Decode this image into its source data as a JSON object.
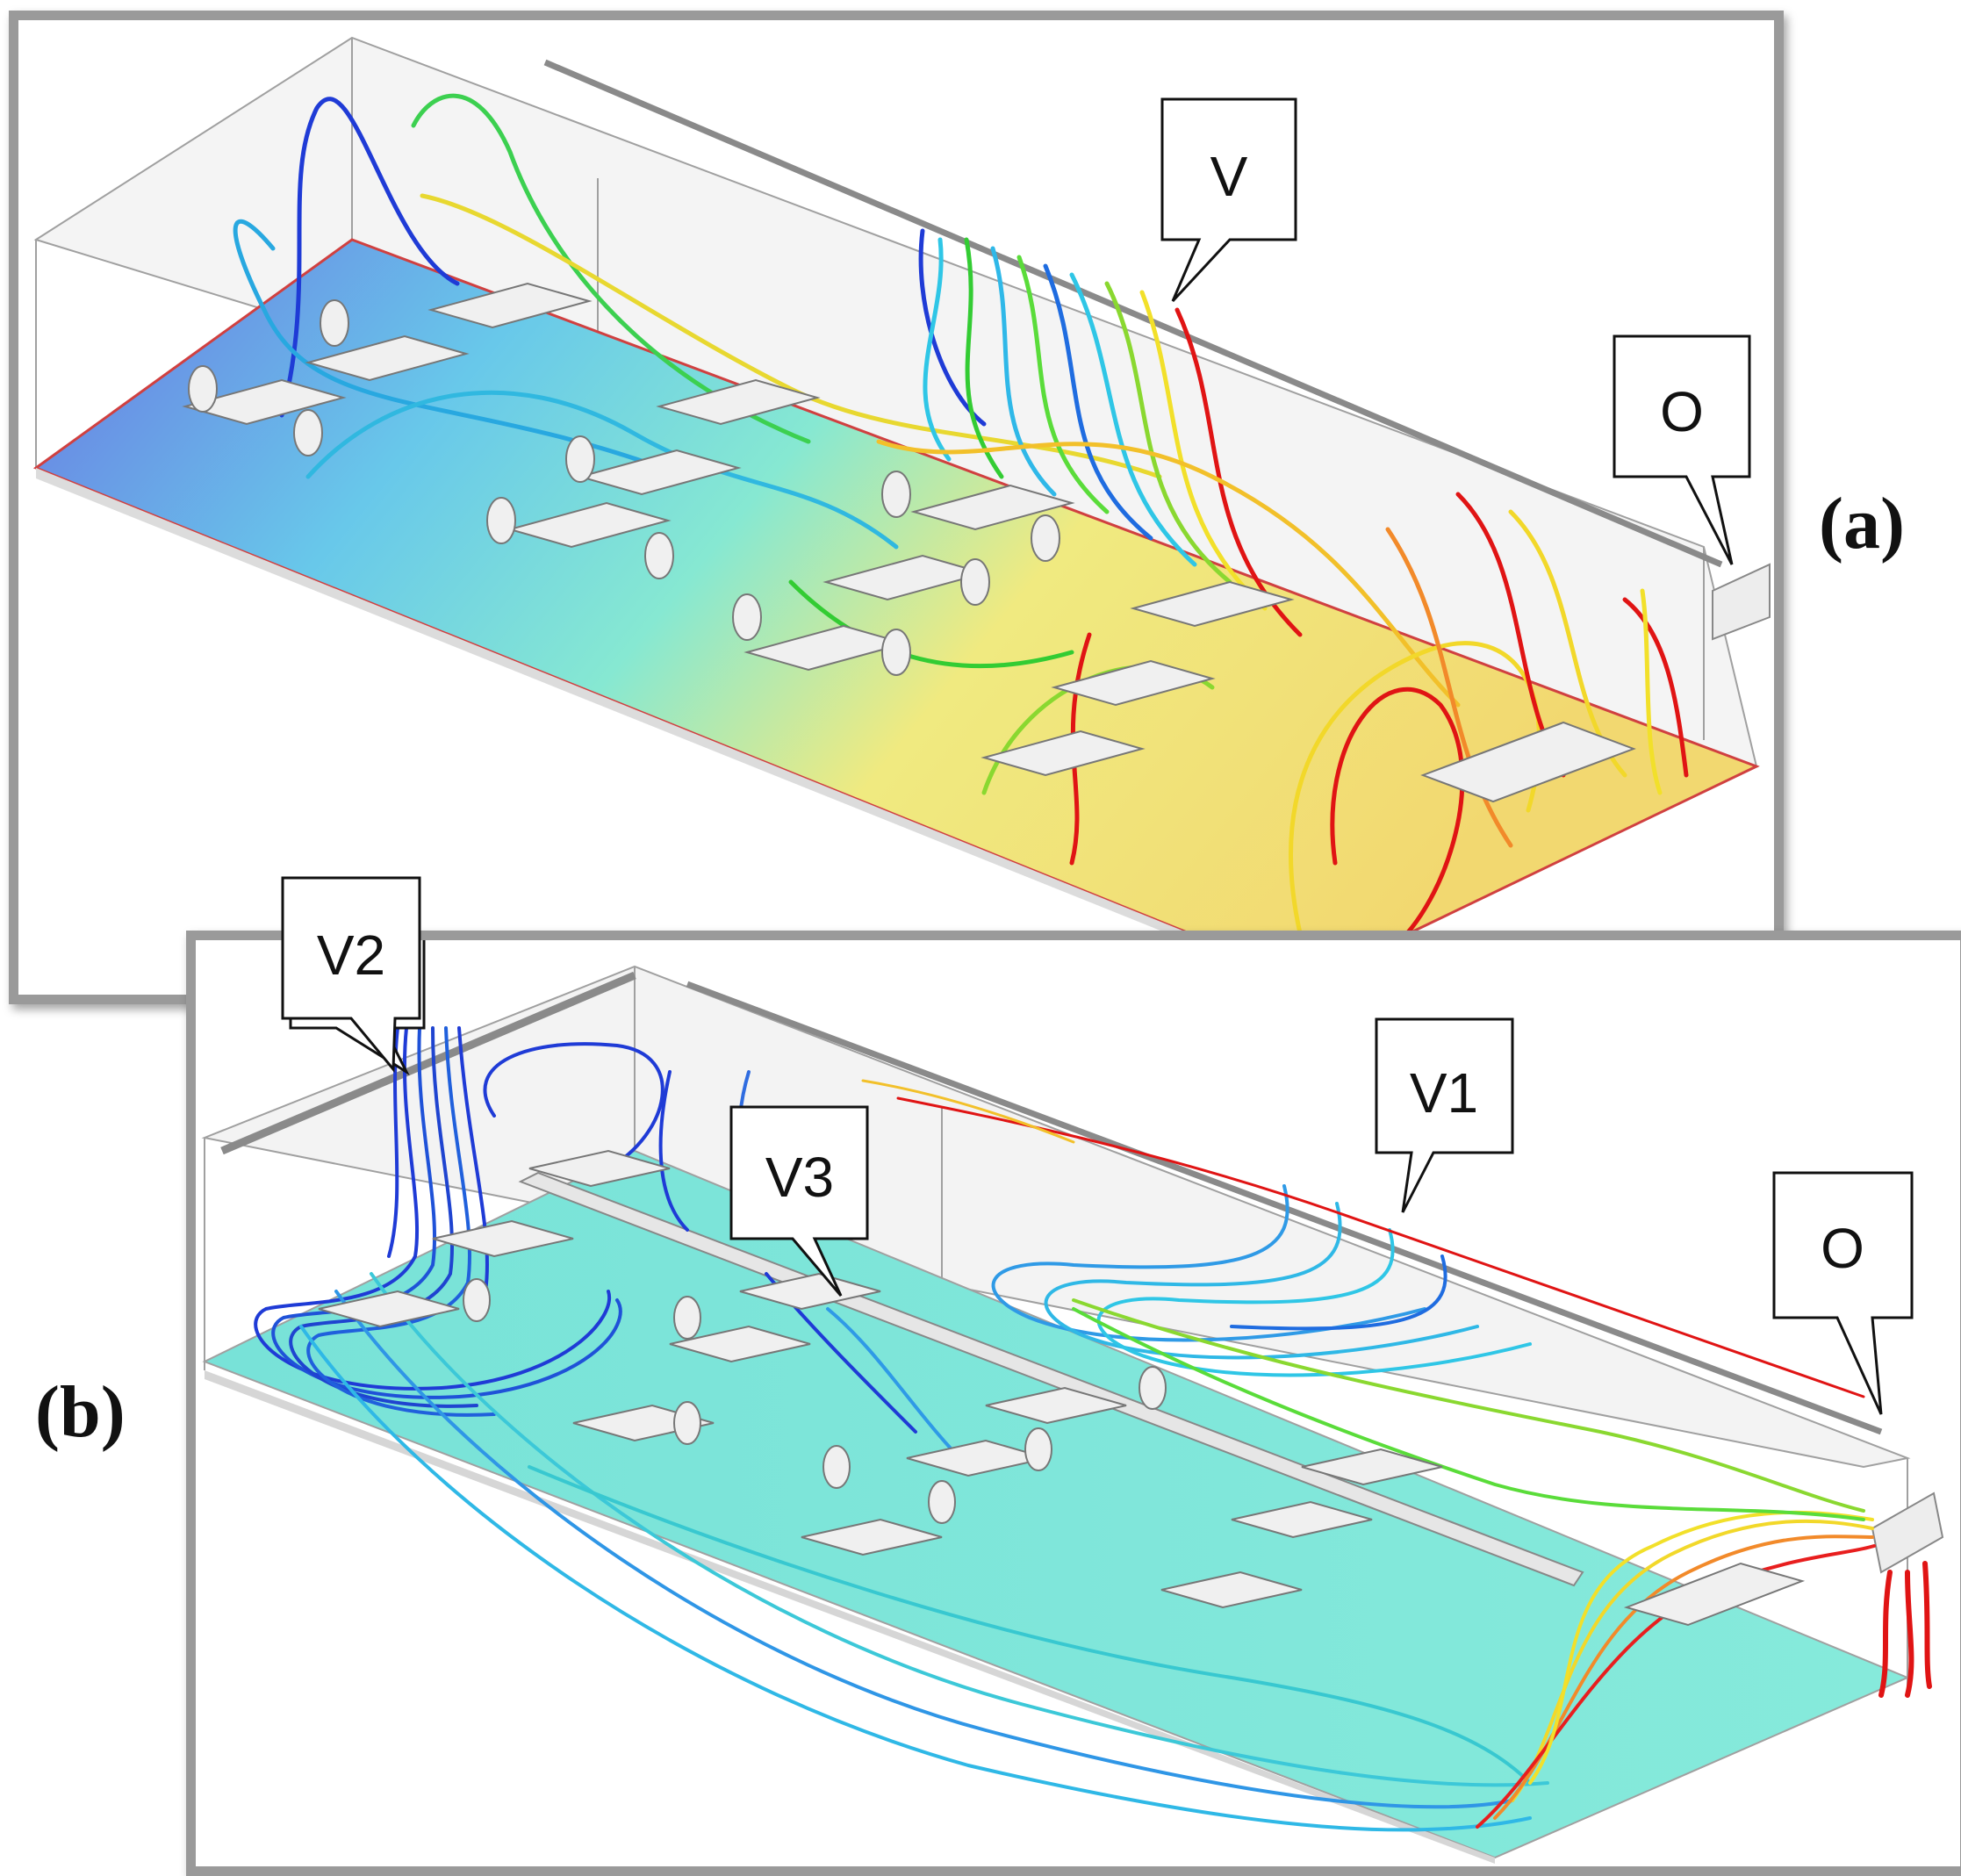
{
  "panel_a": {
    "label": "(a)",
    "callouts": {
      "vent": "V",
      "outlet": "O"
    }
  },
  "panel_b": {
    "label": "(b)",
    "callouts": {
      "vent_1": "V1",
      "vent_2": "V2",
      "vent_3": "V3",
      "outlet": "O"
    }
  },
  "colors": {
    "low": "#1f3bd6",
    "mid_low": "#2fc6e6",
    "mid": "#33cc33",
    "mid_high": "#f2e02a",
    "high": "#e01414",
    "floor_a_cold": "#6c78e6",
    "floor_a_warm": "#f0e878",
    "floor_b": "#7fe6d8"
  }
}
